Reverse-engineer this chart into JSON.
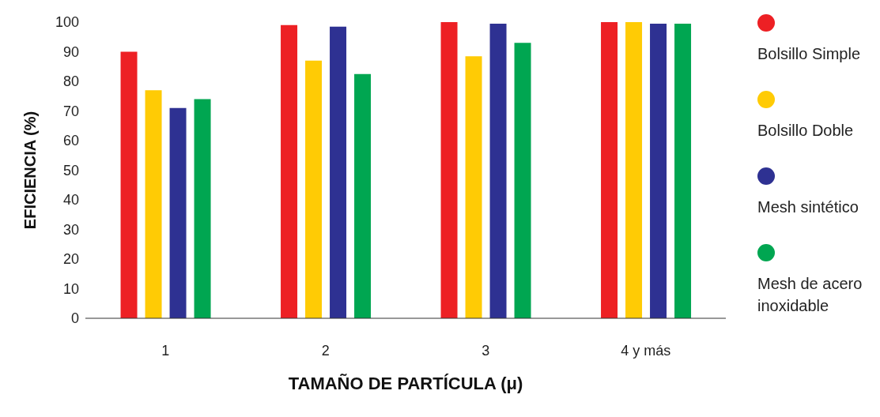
{
  "chart_data": {
    "type": "bar",
    "xlabel": "TAMAÑO DE PARTÍCULA  (μ)",
    "ylabel": "EFICIENCIA (%)",
    "categories": [
      "1",
      "2",
      "3",
      "4 y más"
    ],
    "series": [
      {
        "name": "Bolsillo Simple",
        "color": "#ed2024",
        "values": [
          90,
          99,
          100,
          100
        ]
      },
      {
        "name": "Bolsillo Doble",
        "color": "#ffcb05",
        "values": [
          77,
          87,
          88.5,
          100
        ]
      },
      {
        "name": "Mesh sintético",
        "color": "#2e3192",
        "values": [
          71,
          98.5,
          99.5,
          99.5
        ]
      },
      {
        "name": "Mesh de acero inoxidable",
        "color": "#00a651",
        "values": [
          74,
          82.5,
          93,
          99.5
        ]
      }
    ],
    "ylim": [
      0,
      100
    ],
    "yticks": [
      0,
      10,
      20,
      30,
      40,
      50,
      60,
      70,
      80,
      90,
      100
    ],
    "grid": false,
    "legend": "right"
  }
}
